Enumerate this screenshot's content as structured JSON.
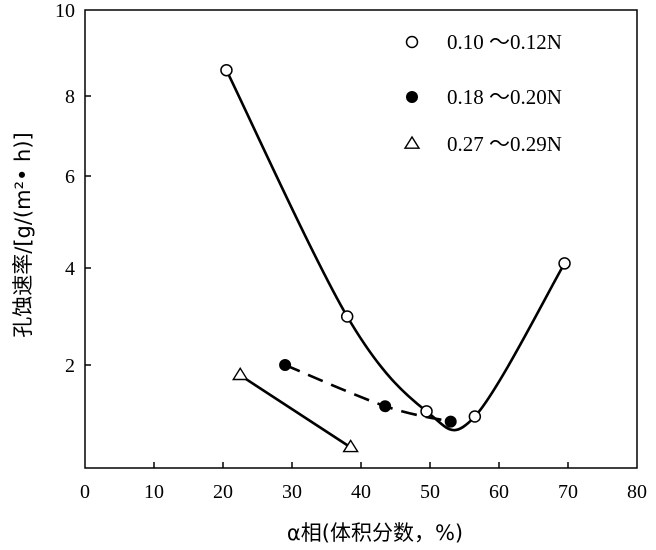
{
  "chart_data": {
    "type": "scatter",
    "xlabel": "α相(体积分数，%)",
    "ylabel": "孔蚀速率/[g/(m²• h)]",
    "xlim": [
      0,
      80
    ],
    "ylim": [
      0,
      10
    ],
    "xticks": [
      "0",
      "10",
      "20",
      "30",
      "40",
      "50",
      "60",
      "70",
      "80"
    ],
    "yticks": [
      "2",
      "4",
      "6",
      "8",
      "10"
    ],
    "grid": false,
    "legend_position": "top-right",
    "series": [
      {
        "name": "0.10 ～0.12N",
        "marker": "open-circle",
        "line": "solid",
        "points": [
          [
            20.5,
            8.6
          ],
          [
            38,
            3.0
          ],
          [
            49.5,
            1.1
          ],
          [
            56.5,
            1.0
          ],
          [
            69.5,
            4.1
          ]
        ]
      },
      {
        "name": "0.18 ～0.20N",
        "marker": "filled-circle",
        "line": "dashed",
        "points": [
          [
            29,
            2.0
          ],
          [
            43.5,
            1.2
          ],
          [
            53,
            0.9
          ]
        ]
      },
      {
        "name": "0.27 ～0.29N",
        "marker": "open-triangle",
        "line": "solid",
        "points": [
          [
            22.5,
            1.8
          ],
          [
            38.5,
            0.4
          ]
        ]
      }
    ]
  }
}
